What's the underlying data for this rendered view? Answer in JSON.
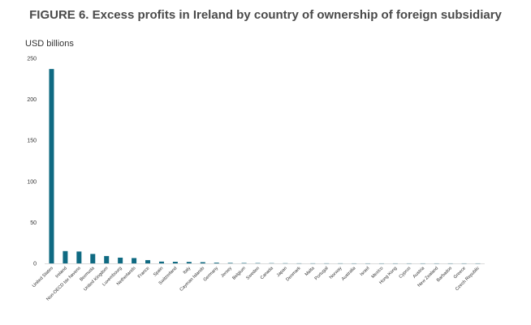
{
  "chart_data": {
    "type": "bar",
    "title": "FIGURE 6. Excess profits in Ireland by country of ownership of foreign subsidiary",
    "ylabel": "USD billions",
    "xlabel": "",
    "ylim": [
      0,
      250
    ],
    "yticks": [
      0,
      50,
      100,
      150,
      200,
      250
    ],
    "categories": [
      "United States",
      "Ireland",
      "Non-OECD tax havens",
      "Bermuda",
      "United Kingdom",
      "Luxembourg",
      "Netherlands",
      "France",
      "Spain",
      "Switzerland",
      "Italy",
      "Cayman Islands",
      "Germany",
      "Jersey",
      "Belgium",
      "Sweden",
      "Canada",
      "Japan",
      "Denmark",
      "Malta",
      "Portugal",
      "Norway",
      "Australia",
      "Israel",
      "Mexico",
      "Hong Kong",
      "Cyprus",
      "Austria",
      "New Zealand",
      "Barbados",
      "Greece",
      "Czech Republic"
    ],
    "values": [
      237,
      15,
      14.5,
      11.5,
      9,
      7,
      6.5,
      4,
      2.2,
      2,
      1.8,
      1.5,
      0.9,
      0.6,
      0.5,
      0.4,
      0.3,
      0.2,
      0.1,
      0.1,
      0.1,
      0.1,
      0.05,
      0.05,
      0.05,
      0.05,
      0.05,
      0.05,
      0.05,
      0.05,
      0.05,
      0.05
    ],
    "bar_color": "#0f6a82",
    "grid": false
  }
}
